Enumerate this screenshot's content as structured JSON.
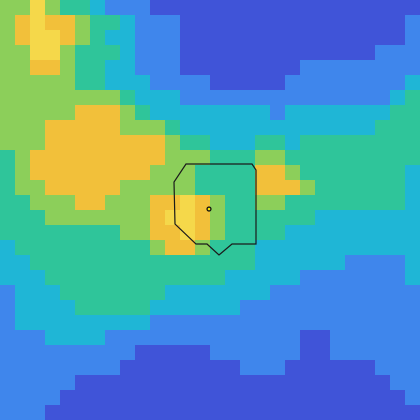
{
  "map": {
    "colormap": [
      "#3b2fb4",
      "#4054d8",
      "#3f86ec",
      "#1fb6d6",
      "#2fc59a",
      "#8ccf5a",
      "#f2c03a",
      "#f5d84a",
      "#fbf31d"
    ],
    "grid_cols": 28,
    "grid_rows": 28,
    "values": [
      "5575443222111111111111111111",
      "5676654432221111111111111112",
      "5677654332221111111111111112",
      "5577544432221111111111111222",
      "5566544332221111111122222222",
      "5555544333222211111222222223",
      "5555555543332222222222222234",
      "5555566654333333332333333344",
      "5556666655543333333333333444",
      "5556666666654433344344444444",
      "4566666666655544455444444444",
      "4566666666555444466544444443",
      "4556666655555444466654444443",
      "4455566555667654455444444443",
      "4445555555677654444443333333",
      "4444444455667654444333333333",
      "3444444444566544433333333333",
      "3344444444444444433333322223",
      "3334444444444443333322222223",
      "2333444444433333332222222222",
      "2333344444333333222222222222",
      "2333333333222222222222222222",
      "2223333222222222222211222222",
      "2222222221111122222211222222",
      "2222222211111111222111111222",
      "2222211111111111111111111122",
      "2222111111111111111111111112",
      "2221111111111111111111111111"
    ],
    "marker": {
      "icon": "location-dot-icon",
      "color": "#f5e50a"
    }
  }
}
